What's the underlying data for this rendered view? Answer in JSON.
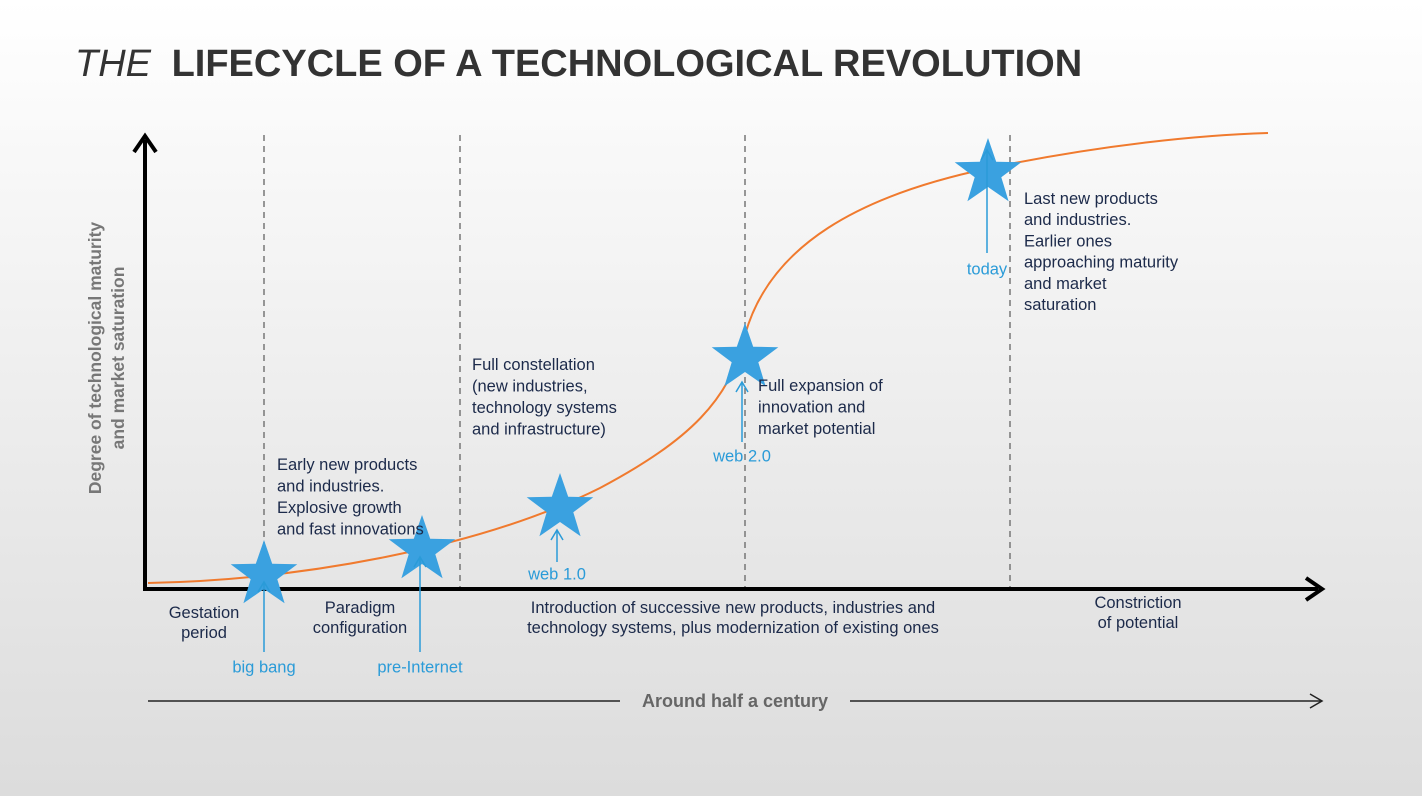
{
  "title": {
    "prefix": "THE",
    "main": "LIFECYCLE OF A TECHNOLOGICAL REVOLUTION"
  },
  "y_axis_label": [
    "Degree of technological maturity",
    "and market saturation"
  ],
  "x_axis_label": "Around half a century",
  "phases": [
    [
      "Gestation",
      "period"
    ],
    [
      "Paradigm",
      "configuration"
    ],
    [
      "Introduction of successive new products, industries and",
      "technology systems, plus modernization of existing ones"
    ],
    [
      "Constriction",
      "of potential"
    ]
  ],
  "milestones": [
    "big bang",
    "pre-Internet",
    "web 1.0",
    "web 2.0",
    "today"
  ],
  "annotations": [
    [
      "Early new products",
      "and industries.",
      "Explosive growth",
      "and fast innovations"
    ],
    [
      "Full constellation",
      "(new industries,",
      "technology systems",
      "and infrastructure)"
    ],
    [
      "Full expansion of",
      "innovation and",
      "market potential"
    ],
    [
      "Last new products",
      "and industries.",
      "Earlier ones",
      "approaching maturity",
      "and market",
      "saturation"
    ]
  ]
}
